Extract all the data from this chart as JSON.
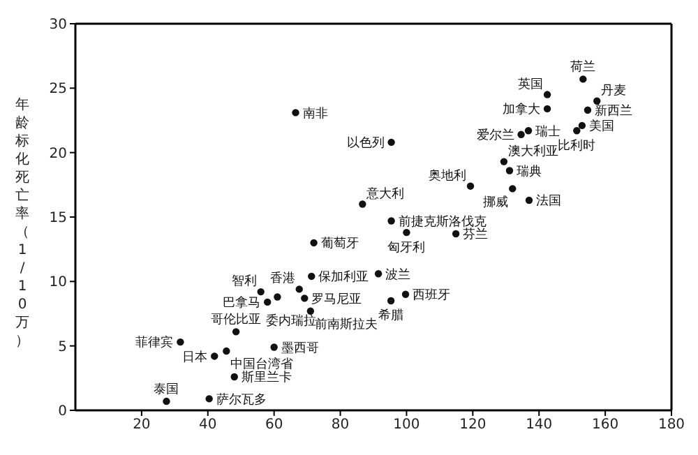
{
  "chart_data": {
    "type": "scatter",
    "ylabel": "年龄标化死亡率（1/10万）",
    "xlim": [
      0,
      180
    ],
    "xticks": [
      20,
      40,
      60,
      80,
      100,
      120,
      140,
      160,
      180
    ],
    "ylim": [
      0,
      30
    ],
    "yticks": [
      0,
      5,
      10,
      15,
      20,
      25,
      30
    ],
    "legend": false,
    "marker": "circle",
    "series": [
      {
        "color": "#111111",
        "x": [
          27.5,
          40.4,
          48,
          42,
          45.6,
          31.7,
          48.5,
          60,
          58,
          56,
          61,
          71.3,
          67.6,
          69.2,
          71,
          72,
          91.5,
          99.7,
          95.3,
          100,
          114.9,
          95.4,
          86.7,
          119.3,
          132,
          137,
          129.4,
          131.1,
          95.4,
          66.5,
          134.6,
          136.8,
          151.4,
          153,
          154.7,
          157.5,
          153.3,
          142.5,
          142.5
        ],
        "values": [
          0.7,
          0.9,
          2.6,
          4.2,
          4.6,
          5.3,
          6.1,
          4.9,
          8.4,
          9.2,
          8.8,
          10.4,
          9.4,
          8.7,
          7.7,
          13.0,
          10.6,
          9.0,
          8.5,
          13.8,
          13.7,
          14.7,
          16.0,
          17.4,
          17.2,
          16.3,
          19.3,
          18.6,
          20.8,
          23.1,
          21.4,
          21.7,
          21.7,
          22.1,
          23.3,
          24.0,
          25.7,
          24.5,
          23.4
        ]
      }
    ],
    "annotations": [
      {
        "text": "泰国",
        "x": 27.5,
        "y": 0.7
      },
      {
        "text": "萨尔瓦多",
        "x": 40.4,
        "y": 0.9
      },
      {
        "text": "斯里兰卡",
        "x": 48,
        "y": 2.6
      },
      {
        "text": "日本",
        "x": 42,
        "y": 4.2
      },
      {
        "text": "中国台湾省",
        "x": 45.6,
        "y": 4.6
      },
      {
        "text": "菲律宾",
        "x": 31.7,
        "y": 5.3
      },
      {
        "text": "哥伦比亚",
        "x": 48.5,
        "y": 6.1
      },
      {
        "text": "墨西哥",
        "x": 60,
        "y": 4.9
      },
      {
        "text": "巴拿马",
        "x": 58,
        "y": 8.4
      },
      {
        "text": "智利",
        "x": 56,
        "y": 9.2
      },
      {
        "text": "委内瑞拉",
        "x": 61,
        "y": 8.8
      },
      {
        "text": "香港",
        "x": 67.6,
        "y": 9.4
      },
      {
        "text": "保加利亚",
        "x": 71.3,
        "y": 10.4
      },
      {
        "text": "罗马尼亚",
        "x": 69.2,
        "y": 8.7
      },
      {
        "text": "前南斯拉夫",
        "x": 71,
        "y": 7.7
      },
      {
        "text": "葡萄牙",
        "x": 72,
        "y": 13.0
      },
      {
        "text": "波兰",
        "x": 91.5,
        "y": 10.6
      },
      {
        "text": "西班牙",
        "x": 99.7,
        "y": 9.0
      },
      {
        "text": "希腊",
        "x": 95.3,
        "y": 8.5
      },
      {
        "text": "匈牙利",
        "x": 100,
        "y": 13.8
      },
      {
        "text": "芬兰",
        "x": 114.9,
        "y": 13.7
      },
      {
        "text": "前捷克斯洛伐克",
        "x": 95.4,
        "y": 14.7
      },
      {
        "text": "意大利",
        "x": 86.7,
        "y": 16.0
      },
      {
        "text": "奥地利",
        "x": 119.3,
        "y": 17.4
      },
      {
        "text": "挪威",
        "x": 132,
        "y": 17.2
      },
      {
        "text": "法国",
        "x": 137,
        "y": 16.3
      },
      {
        "text": "澳大利亚",
        "x": 129.4,
        "y": 19.3
      },
      {
        "text": "瑞典",
        "x": 131.1,
        "y": 18.6
      },
      {
        "text": "以色列",
        "x": 95.4,
        "y": 20.8
      },
      {
        "text": "南非",
        "x": 66.5,
        "y": 23.1
      },
      {
        "text": "爱尔兰",
        "x": 134.6,
        "y": 21.4
      },
      {
        "text": "瑞士",
        "x": 136.8,
        "y": 21.7
      },
      {
        "text": "比利时",
        "x": 151.4,
        "y": 21.7
      },
      {
        "text": "美国",
        "x": 153,
        "y": 22.1
      },
      {
        "text": "新西兰",
        "x": 154.7,
        "y": 23.3
      },
      {
        "text": "丹麦",
        "x": 157.5,
        "y": 24.0
      },
      {
        "text": "荷兰",
        "x": 153.3,
        "y": 25.7
      },
      {
        "text": "英国",
        "x": 142.5,
        "y": 24.5
      },
      {
        "text": "加拿大",
        "x": 142.5,
        "y": 23.4
      }
    ]
  }
}
